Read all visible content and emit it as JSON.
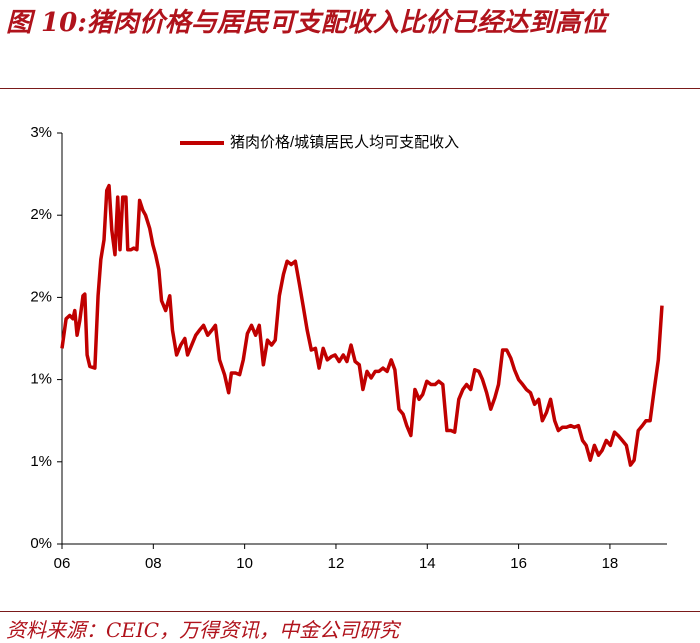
{
  "chart_data": {
    "type": "line",
    "title": "图 10:猪肉价格与居民可支配收入比价已经达到高位",
    "source": "资料来源：CEIC，万得资讯，中金公司研究",
    "xlim": [
      2006,
      2019.25
    ],
    "xticks": [
      {
        "value": 2006,
        "label": "06"
      },
      {
        "value": 2008,
        "label": "08"
      },
      {
        "value": 2010,
        "label": "10"
      },
      {
        "value": 2012,
        "label": "12"
      },
      {
        "value": 2014,
        "label": "14"
      },
      {
        "value": 2016,
        "label": "16"
      },
      {
        "value": 2018,
        "label": "18"
      }
    ],
    "ylim": [
      0,
      2.5
    ],
    "yticks": [
      {
        "value": 0,
        "label": "0%"
      },
      {
        "value": 0.5,
        "label": "1%"
      },
      {
        "value": 1,
        "label": "1%"
      },
      {
        "value": 1.5,
        "label": "2%"
      },
      {
        "value": 2,
        "label": "2%"
      },
      {
        "value": 2.5,
        "label": "3%"
      }
    ],
    "legend": "top",
    "x": [
      2006.0,
      2006.09,
      2006.17,
      2006.24,
      2006.28,
      2006.33,
      2006.39,
      2006.46,
      2006.5,
      2006.55,
      2006.61,
      2006.72,
      2006.79,
      2006.85,
      2006.92,
      2006.98,
      2007.03,
      2007.09,
      2007.16,
      2007.22,
      2007.27,
      2007.33,
      2007.4,
      2007.44,
      2007.51,
      2007.57,
      2007.64,
      2007.7,
      2007.77,
      2007.83,
      2007.92,
      2007.99,
      2008.05,
      2008.12,
      2008.18,
      2008.27,
      2008.36,
      2008.42,
      2008.51,
      2008.6,
      2008.69,
      2008.75,
      2008.84,
      2008.93,
      2009.01,
      2009.1,
      2009.19,
      2009.28,
      2009.36,
      2009.45,
      2009.56,
      2009.65,
      2009.71,
      2009.8,
      2009.89,
      2009.97,
      2010.06,
      2010.15,
      2010.24,
      2010.32,
      2010.41,
      2010.5,
      2010.59,
      2010.67,
      2010.76,
      2010.85,
      2010.93,
      2011.02,
      2011.11,
      2011.2,
      2011.28,
      2011.37,
      2011.46,
      2011.55,
      2011.63,
      2011.72,
      2011.81,
      2011.9,
      2011.98,
      2012.07,
      2012.16,
      2012.24,
      2012.33,
      2012.42,
      2012.51,
      2012.59,
      2012.68,
      2012.77,
      2012.86,
      2012.94,
      2013.03,
      2013.12,
      2013.21,
      2013.29,
      2013.38,
      2013.47,
      2013.55,
      2013.64,
      2013.73,
      2013.82,
      2013.9,
      2013.99,
      2014.08,
      2014.17,
      2014.25,
      2014.34,
      2014.43,
      2014.52,
      2014.6,
      2014.69,
      2014.78,
      2014.86,
      2014.95,
      2015.04,
      2015.13,
      2015.21,
      2015.3,
      2015.39,
      2015.48,
      2015.56,
      2015.65,
      2015.74,
      2015.83,
      2015.91,
      2016.0,
      2016.09,
      2016.17,
      2016.26,
      2016.35,
      2016.44,
      2016.52,
      2016.61,
      2016.7,
      2016.79,
      2016.87,
      2016.96,
      2017.05,
      2017.14,
      2017.22,
      2017.31,
      2017.4,
      2017.48,
      2017.57,
      2017.66,
      2017.75,
      2017.83,
      2017.92,
      2018.01,
      2018.1,
      2018.18,
      2018.27,
      2018.36,
      2018.45,
      2018.53,
      2018.62,
      2018.71,
      2018.79,
      2018.88,
      2018.97,
      2019.06,
      2019.14
    ],
    "series": [
      {
        "name": "猪肉价格/城镇居民人均可支配收入",
        "color": "#c00000",
        "values": [
          1.19,
          1.37,
          1.39,
          1.37,
          1.42,
          1.27,
          1.36,
          1.51,
          1.52,
          1.15,
          1.08,
          1.07,
          1.51,
          1.73,
          1.85,
          2.15,
          2.18,
          1.91,
          1.76,
          2.11,
          1.79,
          2.11,
          2.11,
          1.79,
          1.79,
          1.8,
          1.79,
          2.09,
          2.03,
          2.0,
          1.92,
          1.82,
          1.76,
          1.67,
          1.48,
          1.42,
          1.51,
          1.3,
          1.15,
          1.21,
          1.25,
          1.15,
          1.21,
          1.27,
          1.3,
          1.33,
          1.27,
          1.3,
          1.33,
          1.12,
          1.03,
          0.92,
          1.04,
          1.04,
          1.03,
          1.12,
          1.28,
          1.33,
          1.27,
          1.33,
          1.09,
          1.24,
          1.21,
          1.24,
          1.51,
          1.64,
          1.72,
          1.7,
          1.72,
          1.58,
          1.45,
          1.3,
          1.18,
          1.19,
          1.07,
          1.19,
          1.12,
          1.14,
          1.15,
          1.11,
          1.15,
          1.11,
          1.21,
          1.11,
          1.09,
          0.94,
          1.05,
          1.01,
          1.05,
          1.05,
          1.07,
          1.05,
          1.12,
          1.06,
          0.82,
          0.79,
          0.72,
          0.66,
          0.94,
          0.88,
          0.91,
          0.99,
          0.97,
          0.97,
          0.99,
          0.97,
          0.69,
          0.69,
          0.68,
          0.88,
          0.94,
          0.97,
          0.94,
          1.06,
          1.05,
          1.0,
          0.92,
          0.82,
          0.89,
          0.97,
          1.18,
          1.18,
          1.13,
          1.06,
          1.0,
          0.97,
          0.94,
          0.92,
          0.85,
          0.88,
          0.75,
          0.8,
          0.88,
          0.75,
          0.69,
          0.71,
          0.71,
          0.72,
          0.71,
          0.72,
          0.63,
          0.6,
          0.51,
          0.6,
          0.54,
          0.57,
          0.63,
          0.6,
          0.68,
          0.66,
          0.63,
          0.6,
          0.48,
          0.51,
          0.69,
          0.72,
          0.75,
          0.75,
          0.94,
          1.12,
          1.45
        ]
      }
    ]
  }
}
